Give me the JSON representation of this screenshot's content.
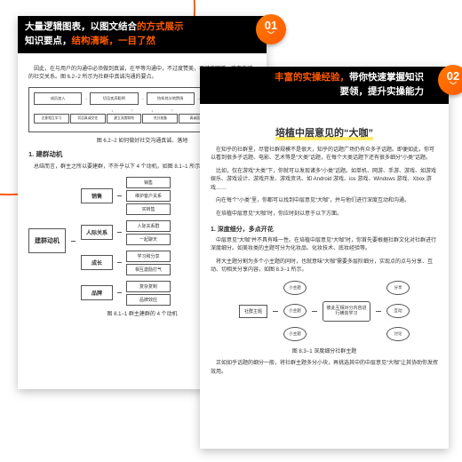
{
  "colors": {
    "accent": "#ff5a00",
    "banner_bg": "#000000",
    "banner_fg": "#ffffff",
    "highlight": "#ffdc00"
  },
  "page1": {
    "banner_l1_a": "大量逻辑图表，以图文结合",
    "banner_l1_b": "的方式展示",
    "banner_l2_a": "知识要点，",
    "banner_l2_b": "结构清晰，一目了然",
    "badge": "01",
    "intro": "因此，在与用户的沟通中必须做到真诚，在平等沟通中，不过度赞美，不过度回避，建立真诚的社交关系。图 6.2−2 所示为社群中真诚沟通的要点。",
    "flow_top": [
      "成员加入",
      "切忌卖弄聪明",
      "恰如其分地赞扬",
      "不同的用户使用不同的沟通内容"
    ],
    "flow_bot": [
      "注意相互学习",
      "切忌真诚交往",
      "建立深度联结",
      "充分准备",
      "真诚面对",
      "建立社交口碑"
    ],
    "cap1": "图 6.2−2  如何做好社交沟通真诚、落地",
    "h1": "1. 建群动机",
    "para2": "总结而言，群主之所以要建群，不外乎以下 4 个动机，如图 8.1−1 所示。",
    "tree_root": "建群动机",
    "branches": [
      {
        "label": "销售",
        "leaves": [
          "销售",
          "维护客户关系",
          "买转售"
        ]
      },
      {
        "label": "人际关系",
        "leaves": [
          "人际关系群",
          "一起聊天"
        ]
      },
      {
        "label": "成长",
        "leaves": [
          "学习和分享",
          "相互激励打气"
        ]
      },
      {
        "label": "品牌",
        "leaves": [
          "复杂复制",
          "品牌效应"
        ]
      }
    ],
    "cap2": "图 8.1−1  群主建群的 4 个动机"
  },
  "page2": {
    "banner_l1_a": "丰富的实操经验，",
    "banner_l1_b": "带你快速掌握知识",
    "banner_l2": "要领，提升实操能力",
    "badge": "02",
    "title": "培植中层意见的“大咖”",
    "p1": "在知乎的社群里，尽管社群规模不是很大，知乎的话题广场仍有众多子话题。即便如此，你可以看到很多子话题、电影、艺术等是“大类”话题，在每个大类话题下还有很多细分“小类”话题。",
    "p2": "比如，仅在游戏“大类”下，你就可以发现诸多“小类”话题。如单机、网游、手游、游戏、如游戏娱乐、游戏设计、游戏开发、游戏资讯、如 Android 游戏、ios 游戏、Windows 游戏、Xbox 游戏……",
    "p3": "向在每个“小类”里，你都可以找到中层意见“大咖”，并与他们进行深度互动和沟通。",
    "p4": "在培植中层意见“大咖”时，你应时刻以意于以下方面。",
    "sub1": "1. 深度细分，多点开花",
    "p5": "中层意见“大咖”并不具有唯一性。在培植中层意见“大咖”时，你首先要根据社群文化对社群进行深度细分。如美妆类的主题可分为化妆品、化妆技术、底妆经验等。",
    "p6": "将大主题分割为多个小主题的同时，也就意味“大咖”需要多层阶细分，实现点的点与分享、互动、切相关分享内容，如图 8.3−1 所示。",
    "net_left": "社群主题",
    "net_mids": [
      "小主题",
      "小主题",
      "小主题"
    ],
    "net_center": "彼此互相对分内容进行横向学习",
    "net_right": [
      "分享",
      "互动",
      "讨论"
    ],
    "cap": "图 8.3−1  深度细分社群主题",
    "p7": "正如如乎话题的细分一般，将社群主题多分小块，再挑选其中的中层意见“大咖”让其协助你发挥效用。"
  }
}
